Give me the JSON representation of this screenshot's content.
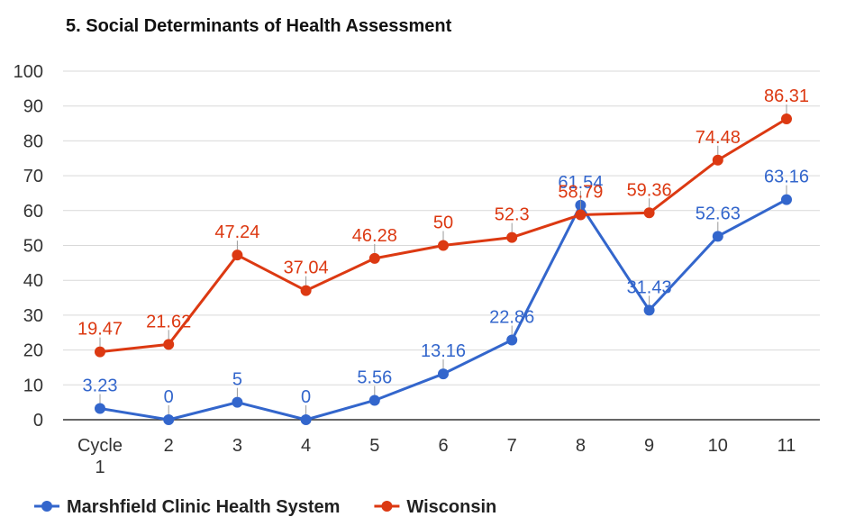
{
  "chart_data": {
    "type": "line",
    "title": "5. Social Determinants of Health Assessment",
    "xlabel": "",
    "ylabel": "",
    "categories": [
      "Cycle 1",
      "2",
      "3",
      "4",
      "5",
      "6",
      "7",
      "8",
      "9",
      "10",
      "11"
    ],
    "ylim": [
      0,
      100
    ],
    "yticks": [
      0,
      10,
      20,
      30,
      40,
      50,
      60,
      70,
      80,
      90,
      100
    ],
    "grid": true,
    "legend_position": "bottom-left",
    "series": [
      {
        "name": "Marshfield Clinic Health System",
        "color": "#3366cc",
        "values": [
          3.23,
          0,
          5,
          0,
          5.56,
          13.16,
          22.86,
          61.54,
          31.43,
          52.63,
          63.16
        ],
        "labels": [
          "3.23",
          "0",
          "5",
          "0",
          "5.56",
          "13.16",
          "22.86",
          "61.54",
          "31.43",
          "52.63",
          "63.16"
        ]
      },
      {
        "name": "Wisconsin",
        "color": "#dc3912",
        "values": [
          19.47,
          21.62,
          47.24,
          37.04,
          46.28,
          50,
          52.3,
          58.79,
          59.36,
          74.48,
          86.31
        ],
        "labels": [
          "19.47",
          "21.62",
          "47.24",
          "37.04",
          "46.28",
          "50",
          "52.3",
          "58.79",
          "59.36",
          "74.48",
          "86.31"
        ]
      }
    ]
  }
}
